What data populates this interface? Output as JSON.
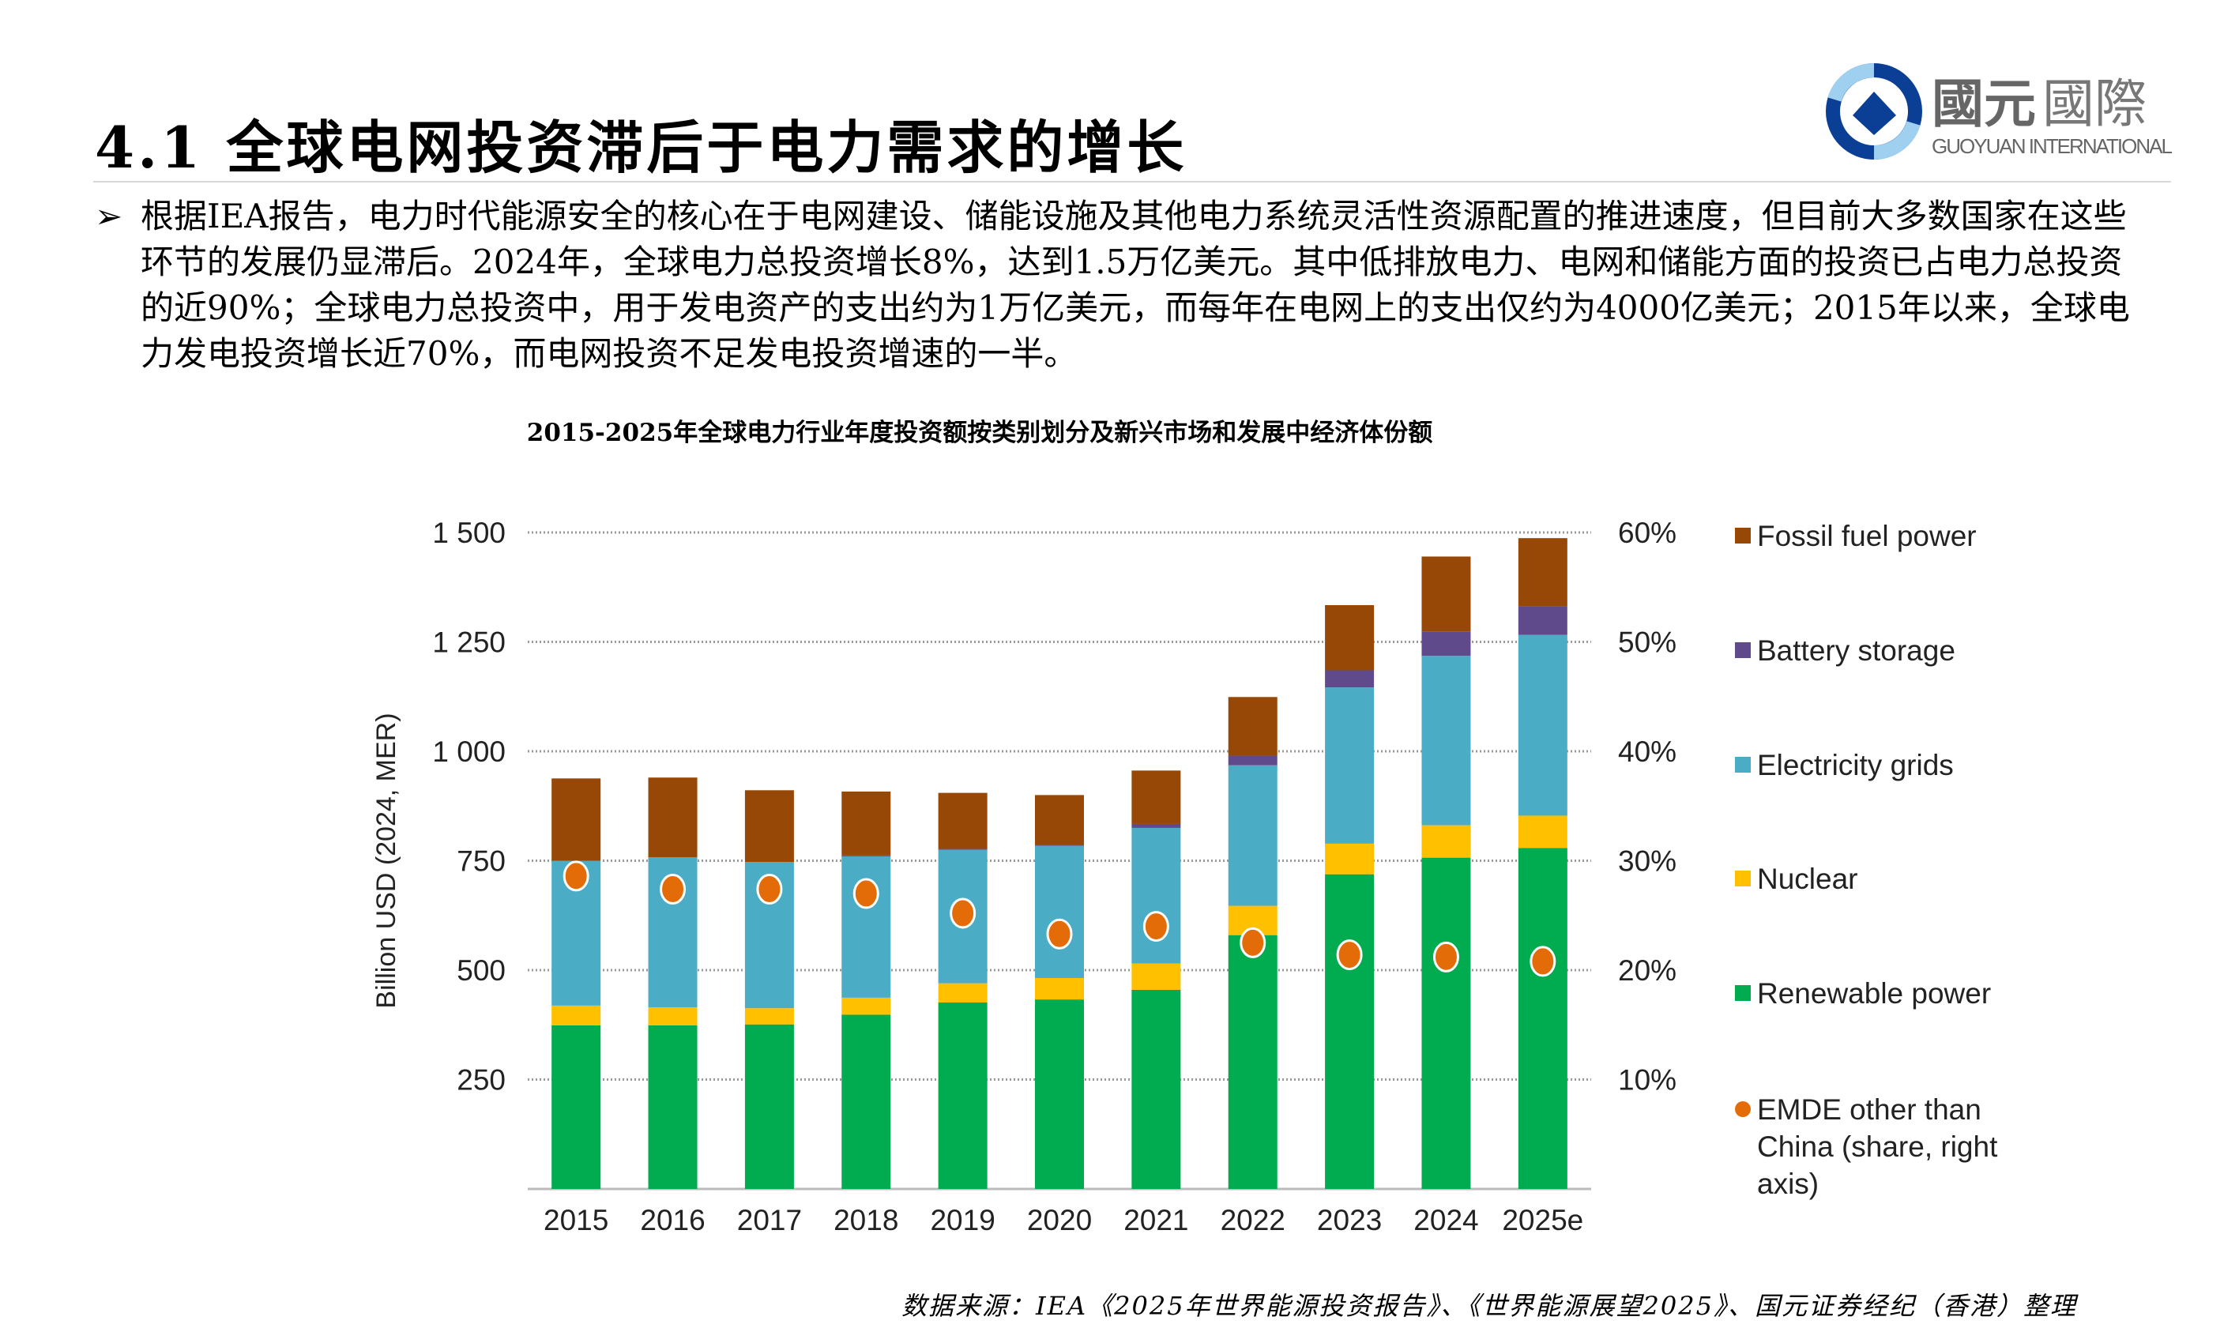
{
  "header": {
    "title": "4.1 全球电网投资滞后于电力需求的增长",
    "logo_text_cn": "國元國際",
    "logo_text_en": "GUOYUAN INTERNATIONAL"
  },
  "bullet": {
    "marker": "➢",
    "text": "根据IEA报告，电力时代能源安全的核心在于电网建设、储能设施及其他电力系统灵活性资源配置的推进速度，但目前大多数国家在这些环节的发展仍显滞后。2024年，全球电力总投资增长8%，达到1.5万亿美元。其中低排放电力、电网和储能方面的投资已占电力总投资的近90%；全球电力总投资中，用于发电资产的支出约为1万亿美元，而每年在电网上的支出仅约为4000亿美元；2015年以来，全球电力发电投资增长近70%，而电网投资不足发电投资增速的一半。"
  },
  "chart_data": {
    "type": "bar",
    "stacked": true,
    "title": "2015-2025年全球电力行业年度投资额按类别划分及新兴市场和发展中经济体份额",
    "ylabel": "Billion USD (2024, MER)",
    "ylim": [
      0,
      1500
    ],
    "yticks": [
      "250",
      "500",
      "750",
      "1 000",
      "1 250",
      "1 500"
    ],
    "ytick_values": [
      250,
      500,
      750,
      1000,
      1250,
      1500
    ],
    "y2lim": [
      0,
      60
    ],
    "y2ticks": [
      "10%",
      "20%",
      "30%",
      "40%",
      "50%",
      "60%"
    ],
    "y2tick_values": [
      10,
      20,
      30,
      40,
      50,
      60
    ],
    "grid": "horizontal dotted",
    "legend_position": "right",
    "categories": [
      "2015",
      "2016",
      "2017",
      "2018",
      "2019",
      "2020",
      "2021",
      "2022",
      "2023",
      "2024",
      "2025e"
    ],
    "series": [
      {
        "name": "Renewable power",
        "color": "#00ac4f",
        "values": [
          374,
          374,
          376,
          398,
          426,
          433,
          455,
          580,
          719,
          757,
          779
        ]
      },
      {
        "name": "Nuclear",
        "color": "#ffc000",
        "values": [
          45,
          41,
          37,
          39,
          44,
          49,
          60,
          67,
          70,
          74,
          74
        ]
      },
      {
        "name": "Electricity grids",
        "color": "#4bacc6",
        "values": [
          331,
          343,
          334,
          323,
          305,
          302,
          310,
          321,
          357,
          387,
          413
        ]
      },
      {
        "name": "Battery storage",
        "color": "#5f4b8b",
        "values": [
          0,
          0,
          0,
          2,
          2,
          2,
          9,
          22,
          39,
          56,
          65
        ]
      },
      {
        "name": "Fossil fuel power",
        "color": "#974706",
        "values": [
          188,
          182,
          164,
          146,
          128,
          114,
          122,
          134,
          149,
          171,
          156
        ]
      }
    ],
    "line_series": {
      "name": "EMDE other than China (share, right axis)",
      "legend_lines": [
        "EMDE other than",
        "China (share, right",
        "axis)"
      ],
      "color": "#e36c09",
      "axis": "right",
      "values": [
        28.6,
        27.4,
        27.4,
        27.0,
        25.2,
        23.3,
        24.0,
        22.5,
        21.4,
        21.2,
        20.8
      ]
    },
    "legend_order": [
      "Fossil fuel power",
      "Battery storage",
      "Electricity grids",
      "Nuclear",
      "Renewable power",
      "EMDE other than China (share, right axis)"
    ]
  },
  "source": "数据来源：IEA《2025年世界能源投资报告》、《世界能源展望2025》、国元证券经纪（香港）整理"
}
